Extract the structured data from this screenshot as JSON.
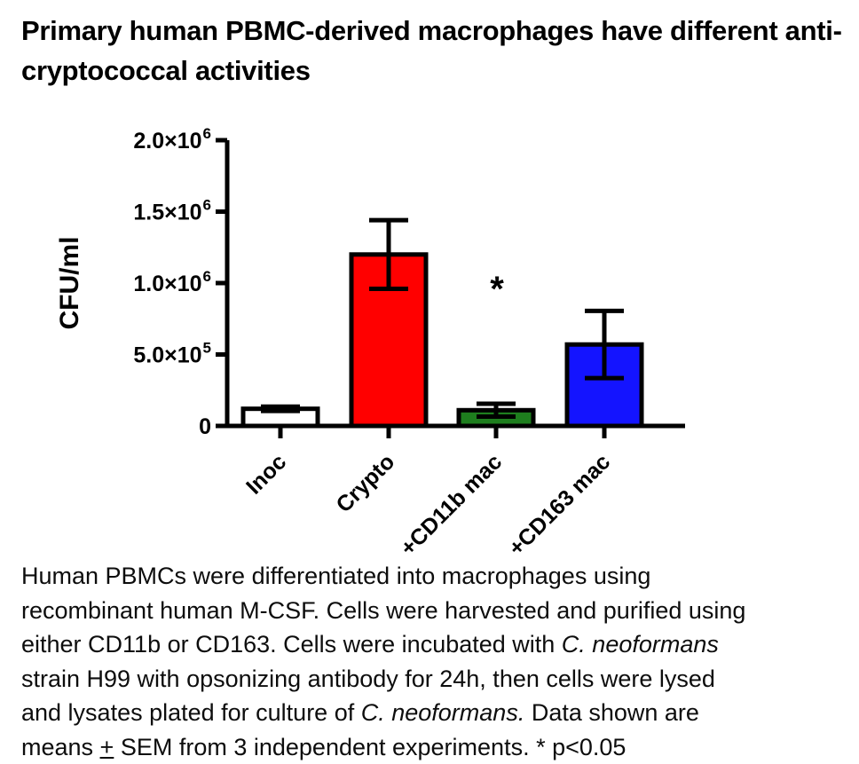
{
  "title": "Primary human PBMC-derived macrophages have different anti-cryptococcal activities",
  "chart_data": {
    "type": "bar",
    "title": "",
    "xlabel": "",
    "ylabel": "CFU/ml",
    "ylim": [
      0,
      2000000
    ],
    "grid": false,
    "legend": false,
    "error_bars": "SEM",
    "categories": [
      "Inoc",
      "Crypto",
      "+CD11b mac",
      "+CD163 mac"
    ],
    "values": [
      120000,
      1200000,
      110000,
      570000
    ],
    "sem": [
      15000,
      240000,
      45000,
      235000
    ],
    "bar_colors": [
      "#FFFFFF",
      "#FF0000",
      "#1E7E1E",
      "#1414FF"
    ],
    "bar_outline_color": "#000000",
    "yticks": [
      {
        "v": 0,
        "m": "0",
        "e": ""
      },
      {
        "v": 500000,
        "m": "5.0×10",
        "e": "5"
      },
      {
        "v": 1000000,
        "m": "1.0×10",
        "e": "6"
      },
      {
        "v": 1500000,
        "m": "1.5×10",
        "e": "6"
      },
      {
        "v": 2000000,
        "m": "2.0×10",
        "e": "6"
      }
    ],
    "significance": [
      {
        "category_index": 2,
        "marker": "*"
      }
    ]
  },
  "caption": {
    "lines": [
      [
        {
          "t": "Human PBMCs were differentiated into macrophages using"
        }
      ],
      [
        {
          "t": "recombinant human M-CSF. Cells were harvested and purified using"
        }
      ],
      [
        {
          "t": "either CD11b or CD163. Cells were incubated with "
        },
        {
          "t": "C. neoformans",
          "i": true
        }
      ],
      [
        {
          "t": "strain H99 with opsonizing antibody for 24h, then cells were lysed"
        }
      ],
      [
        {
          "t": "and lysates plated for culture of "
        },
        {
          "t": "C. neoformans.",
          "i": true
        },
        {
          "t": " Data shown are"
        }
      ],
      [
        {
          "t": "means "
        },
        {
          "t": "+",
          "u": true
        },
        {
          "t": " SEM from 3 independent experiments. * p<0.05"
        }
      ]
    ]
  }
}
